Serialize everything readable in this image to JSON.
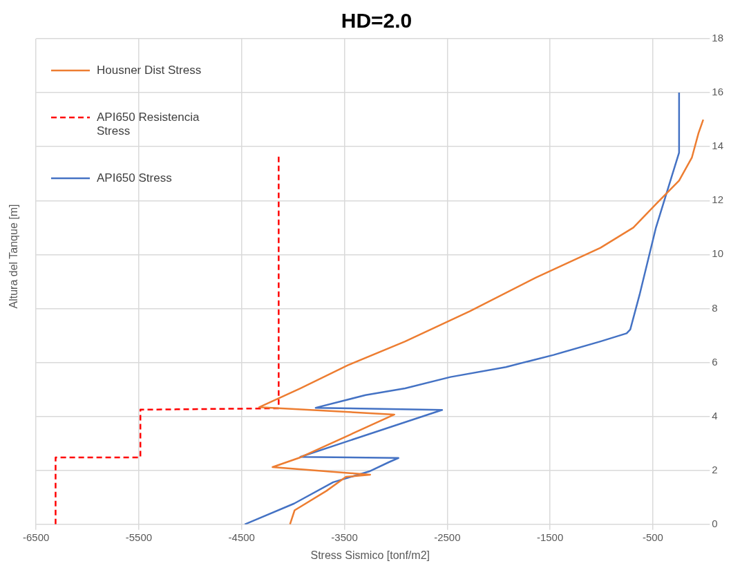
{
  "chart_data": {
    "type": "line",
    "title": "HD=2.0",
    "xlabel": "Stress Sismico [tonf/m2]",
    "ylabel": "Altura del Tanque [m]",
    "xlim": [
      -6500,
      0
    ],
    "xticks": [
      -6500,
      -5500,
      -4500,
      -3500,
      -2500,
      -1500,
      -500
    ],
    "ylim": [
      0,
      18
    ],
    "yticks": [
      0,
      2,
      4,
      6,
      8,
      10,
      12,
      14,
      16,
      18
    ],
    "grid": true,
    "legend": "top left",
    "marker": "none",
    "series": [
      {
        "name": "Housner Dist Stress",
        "color": "#ed7d31",
        "line_style": "solid",
        "x": [
          -4030,
          -3985,
          -3675,
          -3485,
          -3250,
          -4200,
          -3930,
          -3015,
          -4330,
          -3930,
          -3465,
          -2910,
          -2280,
          -1640,
          -1010,
          -690,
          -470,
          -245,
          -120,
          -56,
          -10
        ],
        "values": [
          0,
          0.52,
          1.24,
          1.76,
          1.84,
          2.12,
          2.48,
          4.07,
          4.34,
          5.04,
          5.9,
          6.78,
          7.9,
          9.14,
          10.25,
          11.0,
          11.87,
          12.74,
          13.6,
          14.5,
          15.0
        ]
      },
      {
        "name": "API650 Resistencia Stress",
        "color": "#ff0000",
        "line_style": "dashed",
        "x": [
          -6310,
          -6310,
          -5485,
          -5485,
          -4140,
          -4140
        ],
        "values": [
          0,
          2.48,
          2.48,
          4.25,
          4.3,
          13.73
        ]
      },
      {
        "name": "API650 Stress",
        "color": "#4472c4",
        "line_style": "solid",
        "x": [
          -4470,
          -3990,
          -3610,
          -3260,
          -3070,
          -2975,
          -3930,
          -2550,
          -3780,
          -3295,
          -2910,
          -2470,
          -1930,
          -1465,
          -1010,
          -755,
          -720,
          -630,
          -470,
          -245,
          -245
        ],
        "values": [
          0,
          0.77,
          1.56,
          1.96,
          2.3,
          2.46,
          2.5,
          4.24,
          4.32,
          4.79,
          5.04,
          5.46,
          5.83,
          6.28,
          6.78,
          7.08,
          7.22,
          8.5,
          11.0,
          13.78,
          16.0
        ]
      }
    ]
  }
}
